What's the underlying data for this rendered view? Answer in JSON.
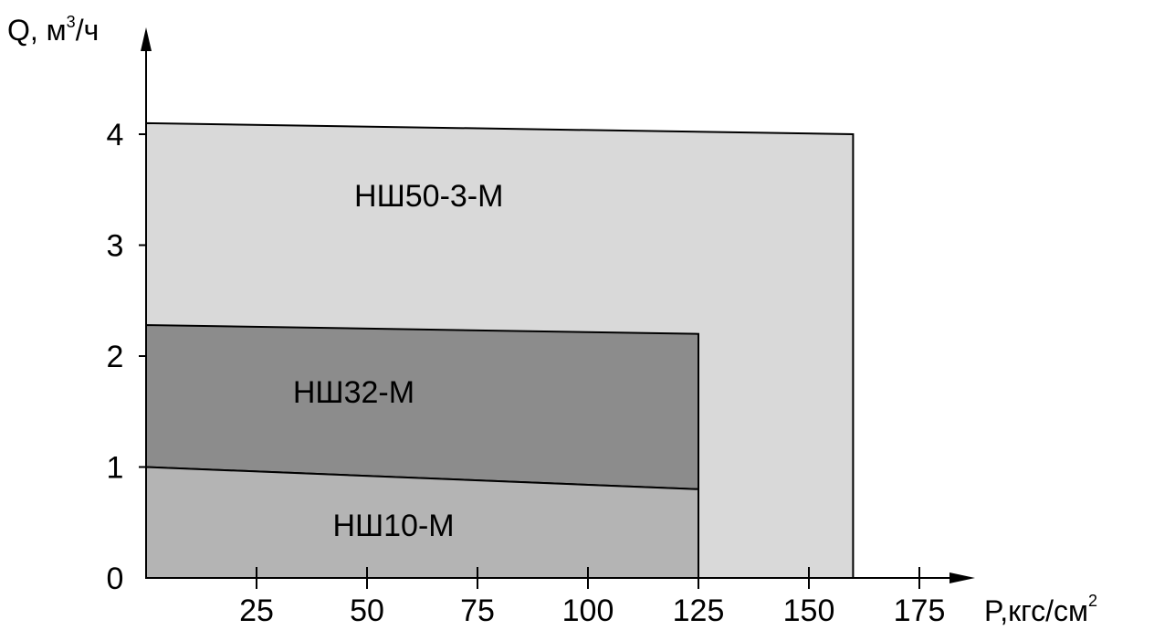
{
  "chart_data": {
    "type": "area",
    "title": "",
    "x_axis": {
      "label_main": "P,кгс/см",
      "label_sup": "2",
      "range": [
        0,
        175
      ],
      "ticks": [
        25,
        50,
        75,
        100,
        125,
        150,
        175
      ],
      "tick_labels": [
        "25",
        "50",
        "75",
        "100",
        "125",
        "150",
        "175"
      ]
    },
    "y_axis": {
      "label_main": "Q, м",
      "label_sup": "3",
      "label_tail": "/ч",
      "range": [
        0,
        4
      ],
      "ticks": [
        0,
        1,
        2,
        3,
        4
      ],
      "tick_labels": [
        "0",
        "1",
        "2",
        "3",
        "4"
      ]
    },
    "grid": false,
    "series": [
      {
        "name": "НШ50-3-М",
        "color": "#d9d9d9",
        "polygon": [
          [
            0,
            0
          ],
          [
            0,
            4.1
          ],
          [
            160,
            4.0
          ],
          [
            160,
            0
          ]
        ],
        "label_at": [
          64,
          3.35
        ]
      },
      {
        "name": "НШ32-М",
        "color": "#8c8c8c",
        "polygon": [
          [
            0,
            1.0
          ],
          [
            0,
            2.28
          ],
          [
            125,
            2.2
          ],
          [
            125,
            0.8
          ]
        ],
        "label_at": [
          47,
          1.58
        ]
      },
      {
        "name": "НШ10-М",
        "color": "#b4b4b4",
        "polygon": [
          [
            0,
            0
          ],
          [
            0,
            1.0
          ],
          [
            125,
            0.8
          ],
          [
            125,
            0
          ]
        ],
        "label_at": [
          56,
          0.38
        ]
      }
    ]
  }
}
